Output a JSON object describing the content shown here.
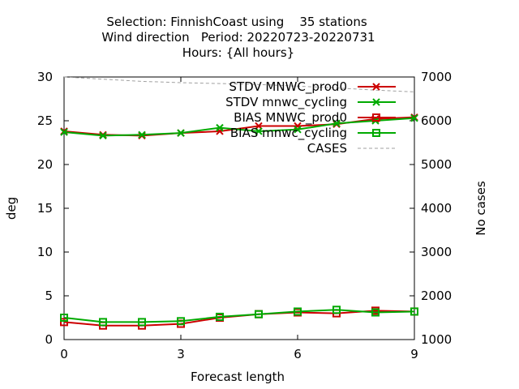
{
  "chart_data": {
    "type": "line",
    "title": [
      "Selection: FinnishCoast using    35 stations",
      "Wind direction   Period: 20220723-20220731",
      "Hours: {All hours}"
    ],
    "xlabel": "Forecast length",
    "ylabel": "deg",
    "y2label": "No cases",
    "xlim": [
      0,
      9
    ],
    "ylim": [
      0,
      30
    ],
    "y2lim": [
      1000,
      7000
    ],
    "xticks": [
      "0",
      "3",
      "6",
      "9"
    ],
    "yticks": [
      "0",
      "5",
      "10",
      "15",
      "20",
      "25",
      "30"
    ],
    "y2ticks": [
      "1000",
      "2000",
      "3000",
      "4000",
      "5000",
      "6000",
      "7000"
    ],
    "grid": false,
    "legend_position": "top-right",
    "series": [
      {
        "name": "STDV MNWC_prod0",
        "color": "#cc0000",
        "marker": "x",
        "axis": "y",
        "x": [
          0,
          1,
          2,
          3,
          4,
          5,
          6,
          7,
          8,
          9
        ],
        "values": [
          23.8,
          23.4,
          23.3,
          23.6,
          23.8,
          24.4,
          24.4,
          24.6,
          25.2,
          25.4
        ]
      },
      {
        "name": "STDV mnwc_cycling",
        "color": "#00aa00",
        "marker": "x",
        "axis": "y",
        "x": [
          0,
          1,
          2,
          3,
          4,
          5,
          6,
          7,
          8,
          9
        ],
        "values": [
          23.7,
          23.3,
          23.4,
          23.6,
          24.2,
          23.8,
          24.0,
          24.7,
          25.0,
          25.3
        ]
      },
      {
        "name": "BIAS MNWC_prod0",
        "color": "#cc0000",
        "marker": "square",
        "axis": "y",
        "x": [
          0,
          1,
          2,
          3,
          4,
          5,
          6,
          7,
          8,
          9
        ],
        "values": [
          2.0,
          1.6,
          1.6,
          1.8,
          2.5,
          2.9,
          3.1,
          3.0,
          3.3,
          3.2
        ]
      },
      {
        "name": "BIAS mnwc_cycling",
        "color": "#00aa00",
        "marker": "square",
        "axis": "y",
        "x": [
          0,
          1,
          2,
          3,
          4,
          5,
          6,
          7,
          8,
          9
        ],
        "values": [
          2.5,
          2.0,
          2.0,
          2.1,
          2.6,
          2.9,
          3.2,
          3.4,
          3.1,
          3.2
        ]
      },
      {
        "name": "CASES",
        "color": "#a0a0a0",
        "marker": "none",
        "dashed": true,
        "axis": "y2",
        "x": [
          0,
          1,
          2,
          3,
          4,
          5,
          6,
          7,
          8,
          9
        ],
        "values": [
          7000,
          6950,
          6900,
          6870,
          6850,
          6830,
          6790,
          6750,
          6700,
          6660
        ]
      }
    ]
  }
}
